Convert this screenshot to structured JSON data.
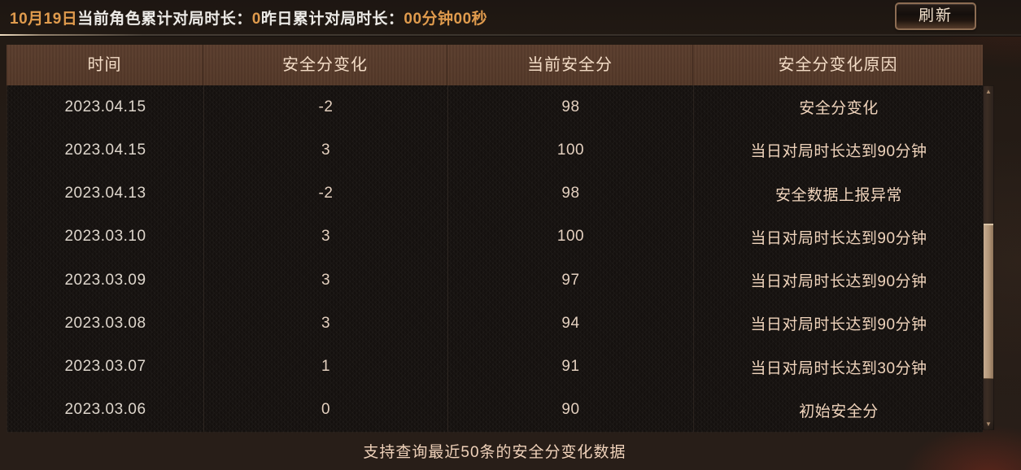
{
  "top_bar": {
    "segments": [
      {
        "text": "10月19日",
        "color": "orange"
      },
      {
        "text": "当前角色累计对局时长：",
        "color": "white"
      },
      {
        "text": "0",
        "color": "orange"
      },
      {
        "text": "昨日累计对局时长：",
        "color": "white"
      },
      {
        "text": "00分钟00秒",
        "color": "orange"
      }
    ],
    "refresh_label": "刷新"
  },
  "table": {
    "headers": [
      "时间",
      "安全分变化",
      "当前安全分",
      "安全分变化原因"
    ],
    "rows": [
      [
        "2023.04.15",
        "-2",
        "98",
        "安全分变化"
      ],
      [
        "2023.04.15",
        "3",
        "100",
        "当日对局时长达到90分钟"
      ],
      [
        "2023.04.13",
        "-2",
        "98",
        "安全数据上报异常"
      ],
      [
        "2023.03.10",
        "3",
        "100",
        "当日对局时长达到90分钟"
      ],
      [
        "2023.03.09",
        "3",
        "97",
        "当日对局时长达到90分钟"
      ],
      [
        "2023.03.08",
        "3",
        "94",
        "当日对局时长达到90分钟"
      ],
      [
        "2023.03.07",
        "1",
        "91",
        "当日对局时长达到30分钟"
      ],
      [
        "2023.03.06",
        "0",
        "90",
        "初始安全分"
      ]
    ]
  },
  "footer": {
    "note": "支持查询最近50条的安全分变化数据"
  },
  "icons": {
    "scroll_up_icon": "▲",
    "scroll_down_icon": "▼"
  },
  "colors": {
    "accent_orange": "#e09b4d",
    "header_bg": "#573b2c",
    "text_cream": "#f0d4bc",
    "scroll_thumb": "#b39779",
    "button_border": "#8d6d53"
  }
}
